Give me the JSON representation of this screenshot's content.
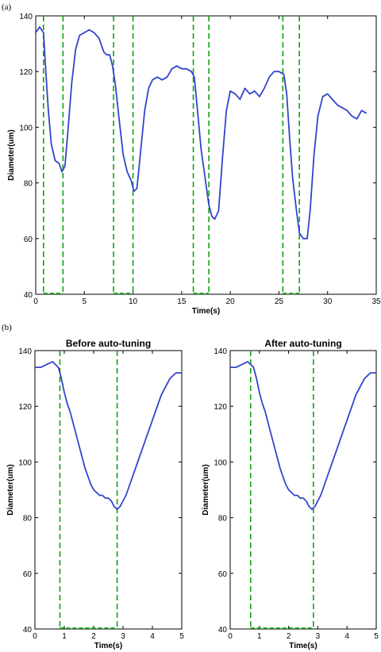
{
  "panel_labels": [
    "(a)",
    "(b)"
  ],
  "colors": {
    "trace": "#3344cc",
    "marker": "#11a011",
    "axis": "#000000",
    "background": "#ffffff"
  },
  "chart_data": [
    {
      "type": "line",
      "panel": "(a)",
      "title": "",
      "xlabel": "Time(s)",
      "ylabel": "Diameter(um)",
      "xlim": [
        0,
        35
      ],
      "ylim": [
        40,
        140
      ],
      "xticks": [
        0,
        5,
        10,
        15,
        20,
        25,
        30,
        35
      ],
      "yticks": [
        40,
        60,
        80,
        100,
        120,
        140
      ],
      "series": [
        {
          "x": [
            0,
            0.4,
            0.8,
            1.0,
            1.3,
            1.6,
            2.0,
            2.4,
            2.7,
            3.0,
            3.3,
            3.7,
            4.1,
            4.5,
            5.0,
            5.5,
            6.0,
            6.5,
            7.0,
            7.3,
            7.6,
            7.9,
            8.2,
            8.6,
            9.0,
            9.4,
            9.8,
            10.1,
            10.4,
            10.8,
            11.2,
            11.6,
            12.0,
            12.5,
            13.0,
            13.5,
            14.0,
            14.5,
            15.0,
            15.5,
            16.0,
            16.3,
            16.6,
            17.0,
            17.4,
            17.8,
            18.1,
            18.4,
            18.8,
            19.2,
            19.6,
            20.0,
            20.5,
            21.0,
            21.5,
            22.0,
            22.5,
            23.0,
            23.5,
            24.0,
            24.5,
            25.0,
            25.5,
            25.8,
            26.1,
            26.4,
            26.8,
            27.1,
            27.5,
            27.9,
            28.2,
            28.6,
            29.0,
            29.5,
            30.0,
            30.5,
            31.0,
            31.5,
            32.0,
            32.5,
            33.0,
            33.5,
            34.0
          ],
          "y": [
            134,
            136,
            134,
            122,
            106,
            94,
            88,
            87,
            84,
            86,
            98,
            116,
            128,
            133,
            134,
            135,
            134,
            132,
            127,
            126,
            126,
            122,
            115,
            102,
            90,
            84,
            81,
            77,
            78,
            92,
            106,
            114,
            117,
            118,
            117,
            118,
            121,
            122,
            121,
            121,
            120,
            118,
            107,
            92,
            82,
            72,
            68,
            67,
            70,
            89,
            106,
            113,
            112,
            110,
            114,
            112,
            113,
            111,
            114,
            118,
            120,
            120,
            119,
            112,
            96,
            82,
            70,
            62,
            60,
            60,
            70,
            90,
            104,
            111,
            112,
            110,
            108,
            107,
            106,
            104,
            103,
            106,
            105
          ]
        }
      ],
      "markers_x": [
        0.8,
        2.8,
        8.0,
        10.0,
        16.2,
        17.8,
        25.4,
        27.1
      ]
    },
    {
      "type": "line",
      "panel": "(b)",
      "title": "Before auto-tuning",
      "xlabel": "Time(s)",
      "ylabel": "Diameter(um)",
      "xlim": [
        0,
        5
      ],
      "ylim": [
        40,
        140
      ],
      "xticks": [
        0,
        1,
        2,
        3,
        4,
        5
      ],
      "yticks": [
        40,
        60,
        80,
        100,
        120,
        140
      ],
      "series": [
        {
          "x": [
            0,
            0.2,
            0.4,
            0.6,
            0.7,
            0.8,
            0.9,
            1.0,
            1.1,
            1.2,
            1.3,
            1.4,
            1.5,
            1.6,
            1.7,
            1.8,
            1.9,
            2.0,
            2.1,
            2.2,
            2.3,
            2.4,
            2.5,
            2.6,
            2.7,
            2.8,
            2.9,
            3.0,
            3.1,
            3.2,
            3.3,
            3.4,
            3.5,
            3.6,
            3.7,
            3.8,
            3.9,
            4.0,
            4.1,
            4.2,
            4.3,
            4.4,
            4.5,
            4.6,
            4.7,
            4.8,
            4.9,
            5.0
          ],
          "y": [
            134,
            134,
            135,
            136,
            135,
            134,
            130,
            125,
            121,
            118,
            114,
            110,
            106,
            102,
            98,
            95,
            92,
            90,
            89,
            88,
            88,
            87,
            87,
            86,
            84,
            83,
            84,
            86,
            88,
            91,
            94,
            97,
            100,
            103,
            106,
            109,
            112,
            115,
            118,
            121,
            124,
            126,
            128,
            130,
            131,
            132,
            132,
            132
          ]
        }
      ],
      "markers_x": [
        0.85,
        2.8
      ]
    },
    {
      "type": "line",
      "panel": "(b)",
      "title": "After auto-tuning",
      "xlabel": "Time(s)",
      "ylabel": "Diameter(um)",
      "xlim": [
        0,
        5
      ],
      "ylim": [
        40,
        140
      ],
      "xticks": [
        0,
        1,
        2,
        3,
        4,
        5
      ],
      "yticks": [
        40,
        60,
        80,
        100,
        120,
        140
      ],
      "series": [
        {
          "x": [
            0,
            0.2,
            0.4,
            0.6,
            0.7,
            0.8,
            0.9,
            1.0,
            1.1,
            1.2,
            1.3,
            1.4,
            1.5,
            1.6,
            1.7,
            1.8,
            1.9,
            2.0,
            2.1,
            2.2,
            2.3,
            2.4,
            2.5,
            2.6,
            2.7,
            2.8,
            2.9,
            3.0,
            3.1,
            3.2,
            3.3,
            3.4,
            3.5,
            3.6,
            3.7,
            3.8,
            3.9,
            4.0,
            4.1,
            4.2,
            4.3,
            4.4,
            4.5,
            4.6,
            4.7,
            4.8,
            4.9,
            5.0
          ],
          "y": [
            134,
            134,
            135,
            136,
            135,
            134,
            130,
            125,
            121,
            118,
            114,
            110,
            106,
            102,
            98,
            95,
            92,
            90,
            89,
            88,
            88,
            87,
            87,
            86,
            84,
            83,
            84,
            86,
            88,
            91,
            94,
            97,
            100,
            103,
            106,
            109,
            112,
            115,
            118,
            121,
            124,
            126,
            128,
            130,
            131,
            132,
            132,
            132
          ]
        }
      ],
      "markers_x": [
        0.7,
        2.85
      ]
    }
  ]
}
